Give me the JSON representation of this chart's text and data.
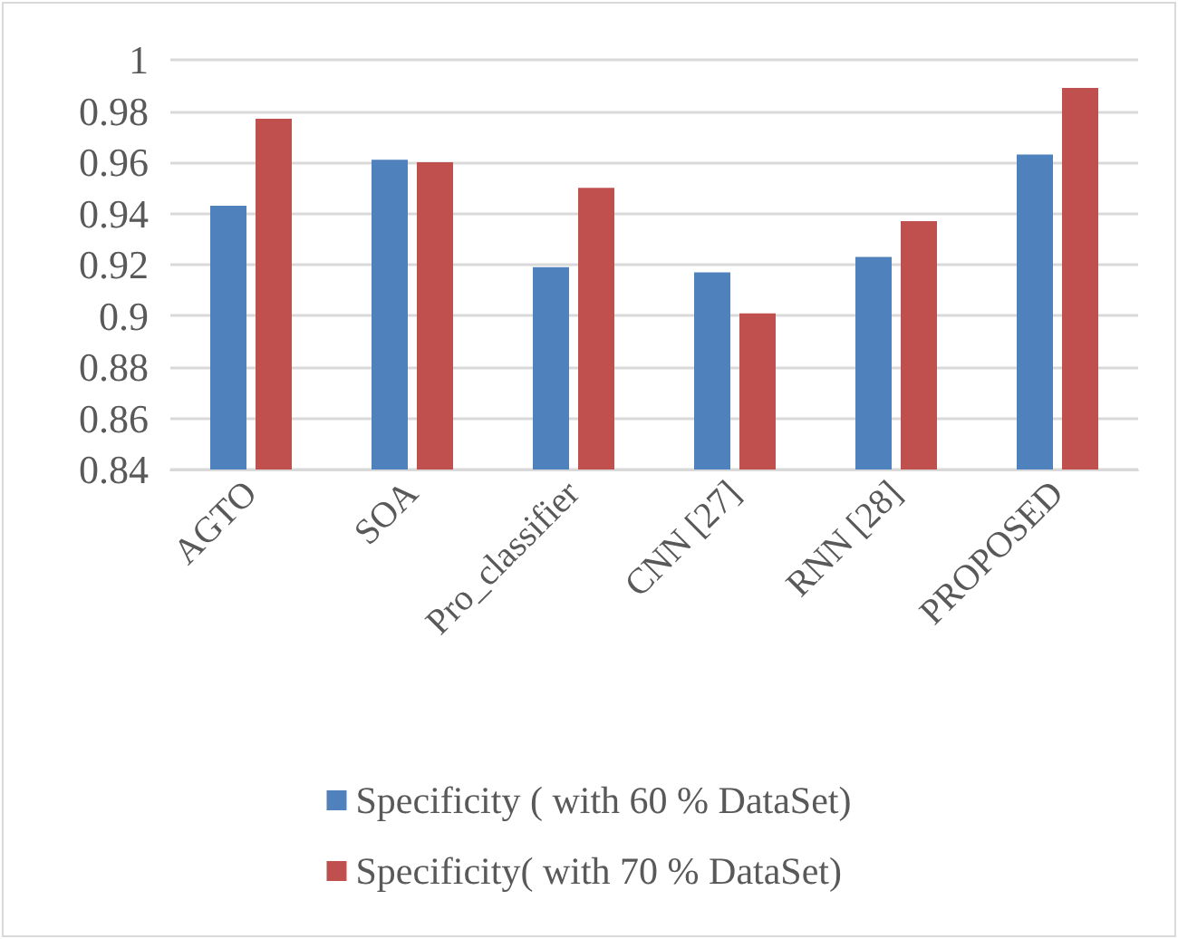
{
  "chart_data": {
    "type": "bar",
    "categories": [
      "AGTO",
      "SOA",
      "Pro_classifier",
      "CNN [27]",
      "RNN [28]",
      "PROPOSED"
    ],
    "series": [
      {
        "name": "Specificity ( with 60 % DataSet)",
        "color": "#4f81bd",
        "values": [
          0.943,
          0.961,
          0.919,
          0.917,
          0.923,
          0.963
        ]
      },
      {
        "name": "Specificity( with 70 % DataSet)",
        "color": "#c0504d",
        "values": [
          0.977,
          0.96,
          0.95,
          0.901,
          0.937,
          0.989
        ]
      }
    ],
    "ylim": [
      0.84,
      1
    ],
    "yticks": [
      0.84,
      0.86,
      0.88,
      0.9,
      0.92,
      0.94,
      0.96,
      0.98,
      1
    ],
    "grid": "y",
    "legend": "bottom"
  }
}
